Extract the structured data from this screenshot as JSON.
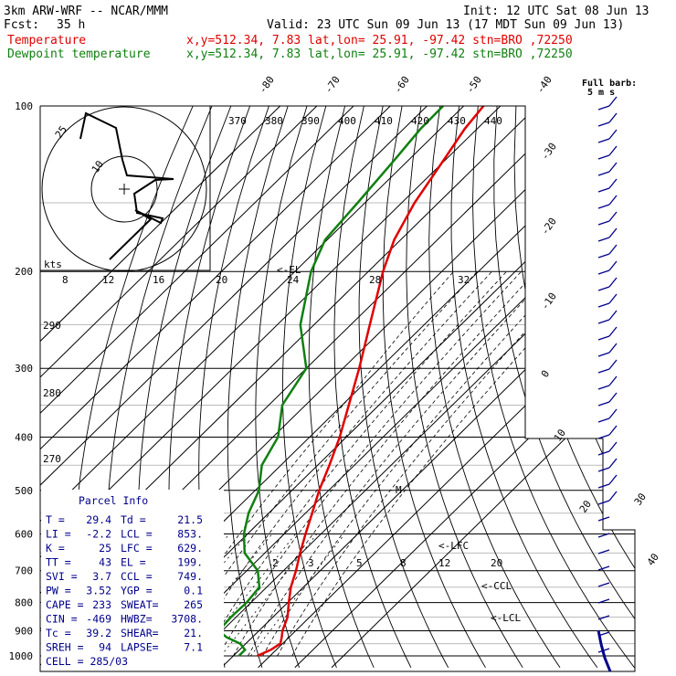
{
  "header": {
    "line1_left": "3km ARW-WRF -- NCAR/MMM",
    "line1_right": "Init: 12 UTC Sat 08 Jun 13",
    "line2_left": "Fcst:",
    "line2_hours": "35 h",
    "line2_right": "Valid: 23 UTC Sun 09 Jun 13 (17 MDT Sun 09 Jun 13)",
    "temp_label": "Temperature",
    "temp_info": "x,y=512.34,  7.83   lat,lon= 25.91, -97.42  stn=BRO ,72250",
    "dew_label": "Dewpoint temperature",
    "dew_info": "x,y=512.34,  7.83   lat,lon= 25.91, -97.42  stn=BRO ,72250",
    "temp_color": "#e00000",
    "dew_color": "#108010"
  },
  "chart_data": {
    "type": "line",
    "pressure_levels": [
      100,
      200,
      300,
      400,
      500,
      600,
      700,
      800,
      900,
      1000
    ],
    "pressure_tick_labels": [
      "100",
      "200",
      "300",
      "400",
      "500",
      "600",
      "700",
      "800",
      "900",
      "1000"
    ],
    "top_isotherm_labels": [
      "-80",
      "-70",
      "-60",
      "-50",
      "-40"
    ],
    "right_isotherm_labels": [
      "-30",
      "-20",
      "-10",
      "0",
      "10",
      "20",
      "30",
      "40"
    ],
    "theta_e_labels": [
      "370",
      "380",
      "390",
      "400",
      "410",
      "420",
      "430",
      "440"
    ],
    "dry_adiabat_labels": [
      "290",
      "280",
      "270"
    ],
    "mixing_ratio_labels": [
      "2",
      "3",
      "5",
      "8",
      "12",
      "20"
    ],
    "hodograph": {
      "units_label": "kts",
      "speed_labels": [
        "8",
        "12",
        "16",
        "20",
        "24",
        "28",
        "32"
      ],
      "ring_labels": [
        "25",
        "10"
      ]
    },
    "wind_barb_title": "Full barb:",
    "wind_barb_units": "5 m s",
    "series": [
      {
        "name": "Temperature",
        "color": "#e00000",
        "points": [
          [
            1000,
            26.5
          ],
          [
            975,
            28.5
          ],
          [
            950,
            29.4
          ],
          [
            925,
            28.0
          ],
          [
            900,
            26.4
          ],
          [
            850,
            24.0
          ],
          [
            800,
            20.3
          ],
          [
            750,
            16.6
          ],
          [
            700,
            13.4
          ],
          [
            650,
            9.6
          ],
          [
            600,
            5.8
          ],
          [
            550,
            1.8
          ],
          [
            500,
            -2.6
          ],
          [
            450,
            -6.8
          ],
          [
            400,
            -11.8
          ],
          [
            350,
            -18.2
          ],
          [
            300,
            -25.6
          ],
          [
            250,
            -34.8
          ],
          [
            200,
            -46.0
          ],
          [
            175,
            -51.8
          ],
          [
            150,
            -56.5
          ],
          [
            125,
            -60.5
          ],
          [
            110,
            -63.4
          ],
          [
            100,
            -64.6
          ]
        ]
      },
      {
        "name": "Dewpoint temperature",
        "color": "#108010",
        "points": [
          [
            1000,
            21.5
          ],
          [
            975,
            21.5
          ],
          [
            950,
            18.5
          ],
          [
            925,
            13.0
          ],
          [
            900,
            9.0
          ],
          [
            850,
            8.6
          ],
          [
            800,
            8.8
          ],
          [
            750,
            8.0
          ],
          [
            700,
            3.0
          ],
          [
            650,
            -5.5
          ],
          [
            600,
            -11.0
          ],
          [
            550,
            -15.5
          ],
          [
            500,
            -19.0
          ],
          [
            450,
            -25.2
          ],
          [
            400,
            -28.6
          ],
          [
            350,
            -36.3
          ],
          [
            300,
            -40.0
          ],
          [
            250,
            -53.7
          ],
          [
            200,
            -65.6
          ],
          [
            175,
            -70.6
          ],
          [
            150,
            -72.0
          ],
          [
            125,
            -73.9
          ],
          [
            110,
            -75.4
          ],
          [
            100,
            -75.6
          ]
        ]
      }
    ],
    "annotations": [
      "<-EL",
      "M",
      "<-LFC",
      "<-CCL",
      "<-LCL"
    ]
  },
  "parcel_info": {
    "title": "Parcel Info",
    "rows": [
      [
        "T   =",
        "29.4",
        "Td  =",
        "21.5"
      ],
      [
        "LI  =",
        "-2.2",
        "LCL =",
        "853."
      ],
      [
        "K   =",
        "25",
        "LFC =",
        "629."
      ],
      [
        "TT  =",
        "43",
        "EL  =",
        "199."
      ],
      [
        "SVI =",
        "3.7",
        "CCL =",
        "749."
      ],
      [
        "PW  =",
        "3.52",
        "YGP =",
        "0.1"
      ],
      [
        "CAPE =",
        "233",
        "SWEAT=",
        "265"
      ],
      [
        "CIN  =",
        "-469",
        "HWBZ=",
        "3708."
      ],
      [
        "Tc  =",
        "39.2",
        "SHEAR=",
        "21."
      ],
      [
        "SREH =",
        "94",
        "LAPSE=",
        "7.1"
      ]
    ],
    "cell_label": "CELL = 285/03"
  }
}
